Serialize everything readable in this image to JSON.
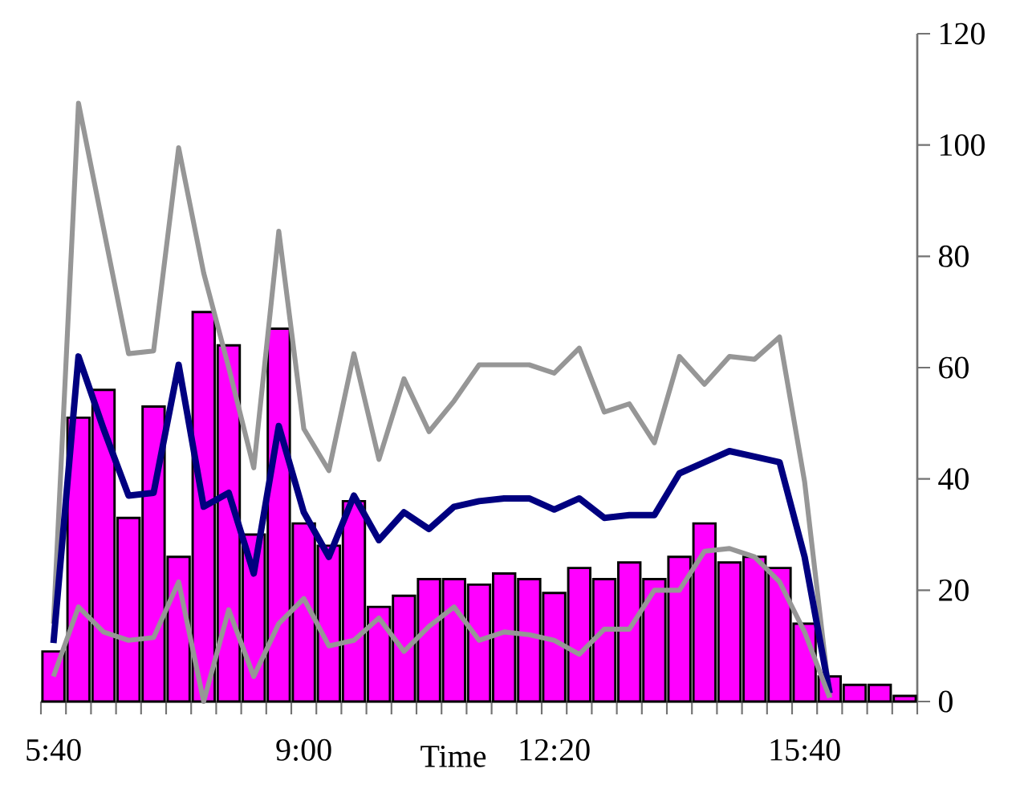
{
  "chart_data": {
    "type": "bar",
    "xlabel": "Time",
    "categories": [
      "5:40",
      null,
      null,
      null,
      null,
      null,
      null,
      null,
      null,
      null,
      "9:00",
      null,
      null,
      null,
      null,
      null,
      null,
      null,
      null,
      null,
      "12:20",
      null,
      null,
      null,
      null,
      null,
      null,
      null,
      null,
      null,
      "15:40",
      null,
      null,
      null,
      null
    ],
    "series": [
      {
        "color": "#ff00ff",
        "values": [
          9,
          51,
          56,
          33,
          53,
          26,
          70,
          64,
          30,
          67,
          32,
          28,
          36,
          17,
          19,
          22,
          22,
          21,
          23,
          22,
          19.5,
          24,
          22,
          25,
          22,
          26,
          32,
          25,
          26,
          24,
          14,
          4.5,
          3,
          3,
          1
        ]
      },
      {
        "type": "line",
        "color": "#969696",
        "values": [
          14,
          107.5,
          85,
          62.5,
          63,
          99.5,
          77,
          60,
          42,
          84.5,
          49,
          41.5,
          62.5,
          43.5,
          58,
          48.5,
          54,
          60.5,
          60.5,
          60.5,
          59,
          63.5,
          52,
          53.5,
          46.5,
          62,
          57,
          62,
          61.5,
          65.5,
          39.5,
          0.7,
          null,
          null,
          null
        ]
      },
      {
        "type": "line",
        "color": "#000080",
        "values": [
          10.5,
          62,
          49,
          37,
          37.5,
          60.5,
          35,
          37.5,
          23,
          49.5,
          34,
          26,
          37,
          29,
          34,
          31,
          35,
          36,
          36.5,
          36.5,
          34.5,
          36.5,
          33,
          33.5,
          33.5,
          41,
          43,
          45,
          44,
          43,
          26,
          1.5,
          null,
          null,
          null
        ]
      },
      {
        "type": "line",
        "color": "#969696",
        "values": [
          4.5,
          17,
          12.5,
          11,
          11.5,
          21.5,
          0,
          16.5,
          4.5,
          14,
          18.5,
          10,
          11,
          15,
          9,
          13.5,
          17,
          11,
          12.5,
          12,
          11,
          8.5,
          13,
          13,
          20,
          20,
          27,
          27.5,
          26,
          21.5,
          12.5,
          0.7,
          null,
          null,
          null
        ]
      }
    ],
    "ylim": [
      0,
      120
    ],
    "yticks": [
      0,
      20,
      40,
      60,
      80,
      100,
      120
    ]
  }
}
